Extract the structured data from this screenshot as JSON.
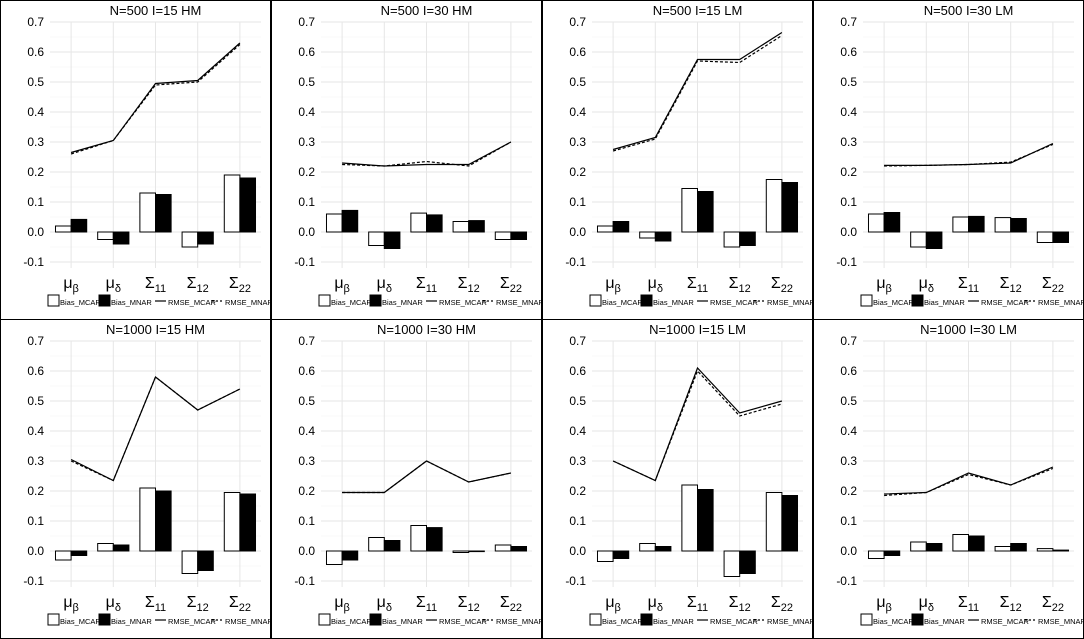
{
  "categories": [
    "μβ",
    "μδ",
    "Σ11",
    "Σ12",
    "Σ22"
  ],
  "category_labels": [
    {
      "base": "μ",
      "sub": "β"
    },
    {
      "base": "μ",
      "sub": "δ"
    },
    {
      "base": "Σ",
      "sub": "11"
    },
    {
      "base": "Σ",
      "sub": "12"
    },
    {
      "base": "Σ",
      "sub": "22"
    }
  ],
  "legend": [
    "Bias_MCAR",
    "Bias_MNAR",
    "RMSE_MCAR",
    "RMSE_MNAR"
  ],
  "yticks": [
    "0.7",
    "0.6",
    "0.5",
    "0.4",
    "0.3",
    "0.2",
    "0.1",
    "0.0",
    "-0.1"
  ],
  "colors": {
    "mcar_fill": "#ffffff",
    "mnar_fill": "#000000",
    "grid": "#e6e6e6",
    "border": "#000000"
  },
  "chart_data": [
    {
      "type": "bar+line",
      "title": "N=500   I=15   HM",
      "ylim": [
        -0.12,
        0.7
      ],
      "bias_mcar": [
        0.02,
        -0.025,
        0.13,
        -0.05,
        0.19
      ],
      "bias_mnar": [
        0.042,
        -0.04,
        0.125,
        -0.04,
        0.18
      ],
      "rmse_mcar": [
        0.265,
        0.305,
        0.495,
        0.505,
        0.63
      ],
      "rmse_mnar": [
        0.26,
        0.305,
        0.49,
        0.5,
        0.625
      ]
    },
    {
      "type": "bar+line",
      "title": "N=500   I=30   HM",
      "ylim": [
        -0.12,
        0.7
      ],
      "bias_mcar": [
        0.06,
        -0.045,
        0.063,
        0.035,
        -0.025
      ],
      "bias_mnar": [
        0.072,
        -0.055,
        0.057,
        0.038,
        -0.025
      ],
      "rmse_mcar": [
        0.23,
        0.22,
        0.225,
        0.225,
        0.3
      ],
      "rmse_mnar": [
        0.225,
        0.22,
        0.235,
        0.22,
        0.3
      ]
    },
    {
      "type": "bar+line",
      "title": "N=500   I=15   LM",
      "ylim": [
        -0.12,
        0.7
      ],
      "bias_mcar": [
        0.02,
        -0.02,
        0.145,
        -0.05,
        0.175
      ],
      "bias_mnar": [
        0.035,
        -0.03,
        0.135,
        -0.045,
        0.165
      ],
      "rmse_mcar": [
        0.275,
        0.315,
        0.575,
        0.575,
        0.665
      ],
      "rmse_mnar": [
        0.27,
        0.31,
        0.57,
        0.565,
        0.655
      ]
    },
    {
      "type": "bar+line",
      "title": "N=500   I=30   LM",
      "ylim": [
        -0.12,
        0.7
      ],
      "bias_mcar": [
        0.06,
        -0.05,
        0.05,
        0.048,
        -0.035
      ],
      "bias_mnar": [
        0.065,
        -0.055,
        0.052,
        0.045,
        -0.035
      ],
      "rmse_mcar": [
        0.222,
        0.222,
        0.225,
        0.23,
        0.295
      ],
      "rmse_mnar": [
        0.22,
        0.222,
        0.225,
        0.233,
        0.292
      ]
    },
    {
      "type": "bar+line",
      "title": "N=1000   I=15   HM",
      "ylim": [
        -0.12,
        0.7
      ],
      "bias_mcar": [
        -0.03,
        0.025,
        0.21,
        -0.075,
        0.195
      ],
      "bias_mnar": [
        -0.015,
        0.02,
        0.2,
        -0.065,
        0.19
      ],
      "rmse_mcar": [
        0.305,
        0.235,
        0.58,
        0.47,
        0.54
      ],
      "rmse_mnar": [
        0.3,
        0.235,
        0.58,
        0.47,
        0.54
      ]
    },
    {
      "type": "bar+line",
      "title": "N=1000   I=30   HM",
      "ylim": [
        -0.12,
        0.7
      ],
      "bias_mcar": [
        -0.045,
        0.045,
        0.085,
        -0.005,
        0.02
      ],
      "bias_mnar": [
        -0.03,
        0.035,
        0.078,
        -0.002,
        0.015
      ],
      "rmse_mcar": [
        0.195,
        0.195,
        0.3,
        0.23,
        0.26
      ],
      "rmse_mnar": [
        0.195,
        0.195,
        0.3,
        0.23,
        0.26
      ]
    },
    {
      "type": "bar+line",
      "title": "N=1000   I=15   LM",
      "ylim": [
        -0.12,
        0.7
      ],
      "bias_mcar": [
        -0.035,
        0.025,
        0.22,
        -0.085,
        0.195
      ],
      "bias_mnar": [
        -0.025,
        0.015,
        0.205,
        -0.075,
        0.185
      ],
      "rmse_mcar": [
        0.3,
        0.235,
        0.61,
        0.46,
        0.5
      ],
      "rmse_mnar": [
        0.3,
        0.235,
        0.6,
        0.45,
        0.49
      ]
    },
    {
      "type": "bar+line",
      "title": "N=1000   I=30   LM",
      "ylim": [
        -0.12,
        0.7
      ],
      "bias_mcar": [
        -0.025,
        0.03,
        0.055,
        0.015,
        0.008
      ],
      "bias_mnar": [
        -0.015,
        0.025,
        0.05,
        0.025,
        0.003
      ],
      "rmse_mcar": [
        0.19,
        0.195,
        0.26,
        0.22,
        0.28
      ],
      "rmse_mnar": [
        0.185,
        0.195,
        0.255,
        0.22,
        0.275
      ]
    }
  ]
}
